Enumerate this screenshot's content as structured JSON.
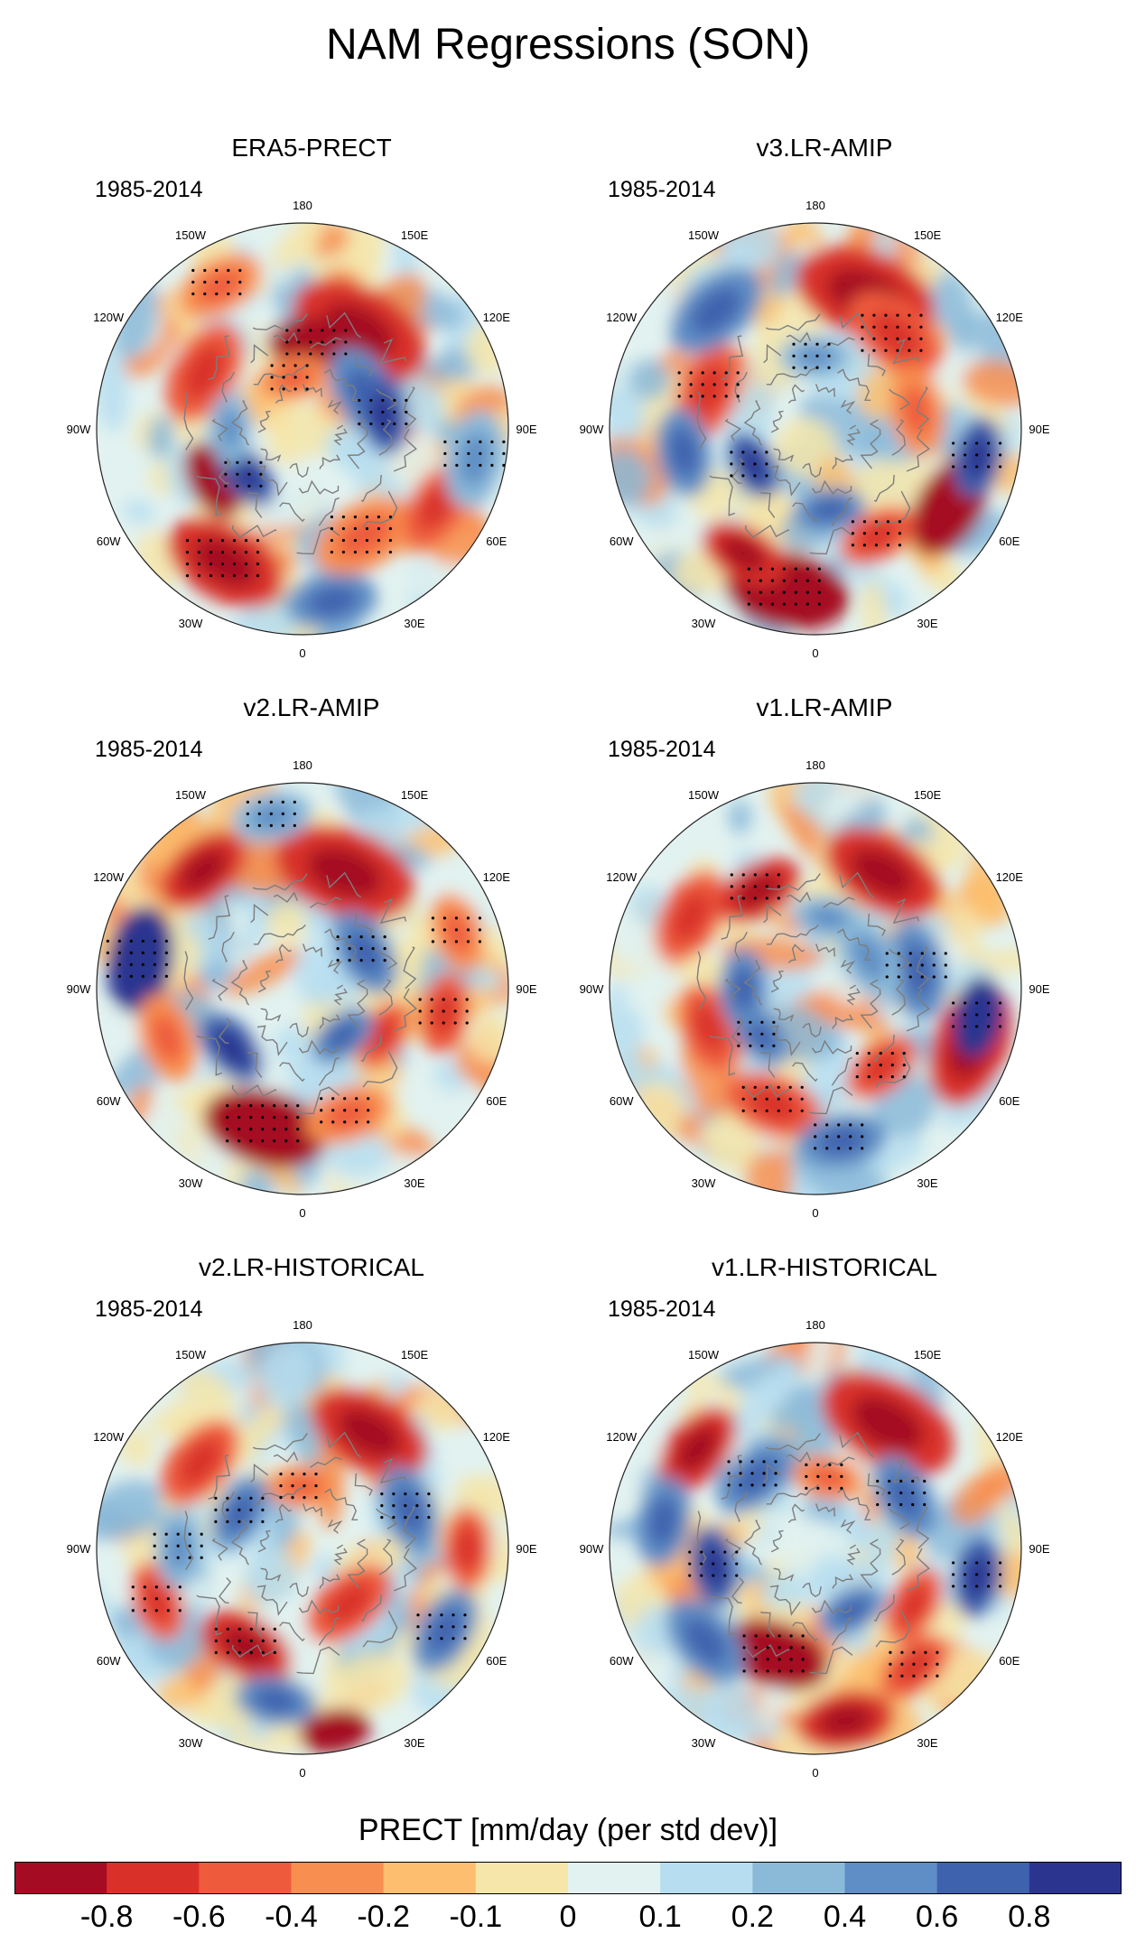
{
  "title": "NAM Regressions (SON)",
  "panels": [
    {
      "title": "ERA5-PRECT",
      "period": "1985-2014"
    },
    {
      "title": "v3.LR-AMIP",
      "period": "1985-2014"
    },
    {
      "title": "v2.LR-AMIP",
      "period": "1985-2014"
    },
    {
      "title": "v1.LR-AMIP",
      "period": "1985-2014"
    },
    {
      "title": "v2.LR-HISTORICAL",
      "period": "1985-2014"
    },
    {
      "title": "v1.LR-HISTORICAL",
      "period": "1985-2014"
    }
  ],
  "longitude_labels": [
    "180",
    "150E",
    "120E",
    "90E",
    "60E",
    "30E",
    "0",
    "30W",
    "60W",
    "90W",
    "120W",
    "150W"
  ],
  "colorbar": {
    "title": "PRECT [mm/day (per std dev)]",
    "tick_labels": [
      "-0.8",
      "-0.6",
      "-0.4",
      "-0.2",
      "-0.1",
      "0",
      "0.1",
      "0.2",
      "0.4",
      "0.6",
      "0.8"
    ],
    "colors": [
      "#a50b23",
      "#d9312a",
      "#ee5b3c",
      "#f88f50",
      "#fdbf6f",
      "#f6e6aa",
      "#e2f2f0",
      "#b7def0",
      "#8bbad9",
      "#5e8ec5",
      "#3f62ae",
      "#2b3590"
    ]
  }
}
